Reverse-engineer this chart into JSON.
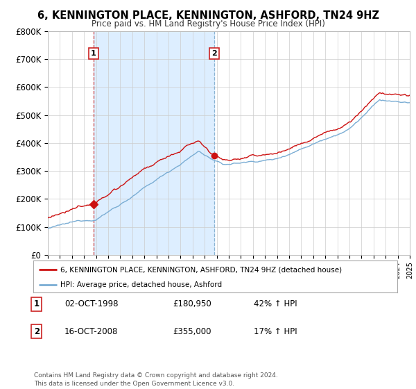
{
  "title": "6, KENNINGTON PLACE, KENNINGTON, ASHFORD, TN24 9HZ",
  "subtitle": "Price paid vs. HM Land Registry's House Price Index (HPI)",
  "ylim": [
    0,
    800000
  ],
  "yticks": [
    0,
    100000,
    200000,
    300000,
    400000,
    500000,
    600000,
    700000,
    800000
  ],
  "ytick_labels": [
    "£0",
    "£100K",
    "£200K",
    "£300K",
    "£400K",
    "£500K",
    "£600K",
    "£700K",
    "£800K"
  ],
  "sale1_date": 1998.79,
  "sale1_price": 180950,
  "sale1_label": "1",
  "sale2_date": 2008.79,
  "sale2_price": 355000,
  "sale2_label": "2",
  "hpi_color": "#7aadd4",
  "price_color": "#cc1111",
  "sale_point_color": "#cc1111",
  "vline1_color": "#cc4444",
  "vline2_color": "#8ab4d4",
  "shade_color": "#ddeeff",
  "background_color": "#ffffff",
  "grid_color": "#cccccc",
  "legend_label_price": "6, KENNINGTON PLACE, KENNINGTON, ASHFORD, TN24 9HZ (detached house)",
  "legend_label_hpi": "HPI: Average price, detached house, Ashford",
  "note1_label": "1",
  "note1_date": "02-OCT-1998",
  "note1_price": "£180,950",
  "note1_change": "42% ↑ HPI",
  "note2_label": "2",
  "note2_date": "16-OCT-2008",
  "note2_price": "£355,000",
  "note2_change": "17% ↑ HPI",
  "footer": "Contains HM Land Registry data © Crown copyright and database right 2024.\nThis data is licensed under the Open Government Licence v3.0."
}
